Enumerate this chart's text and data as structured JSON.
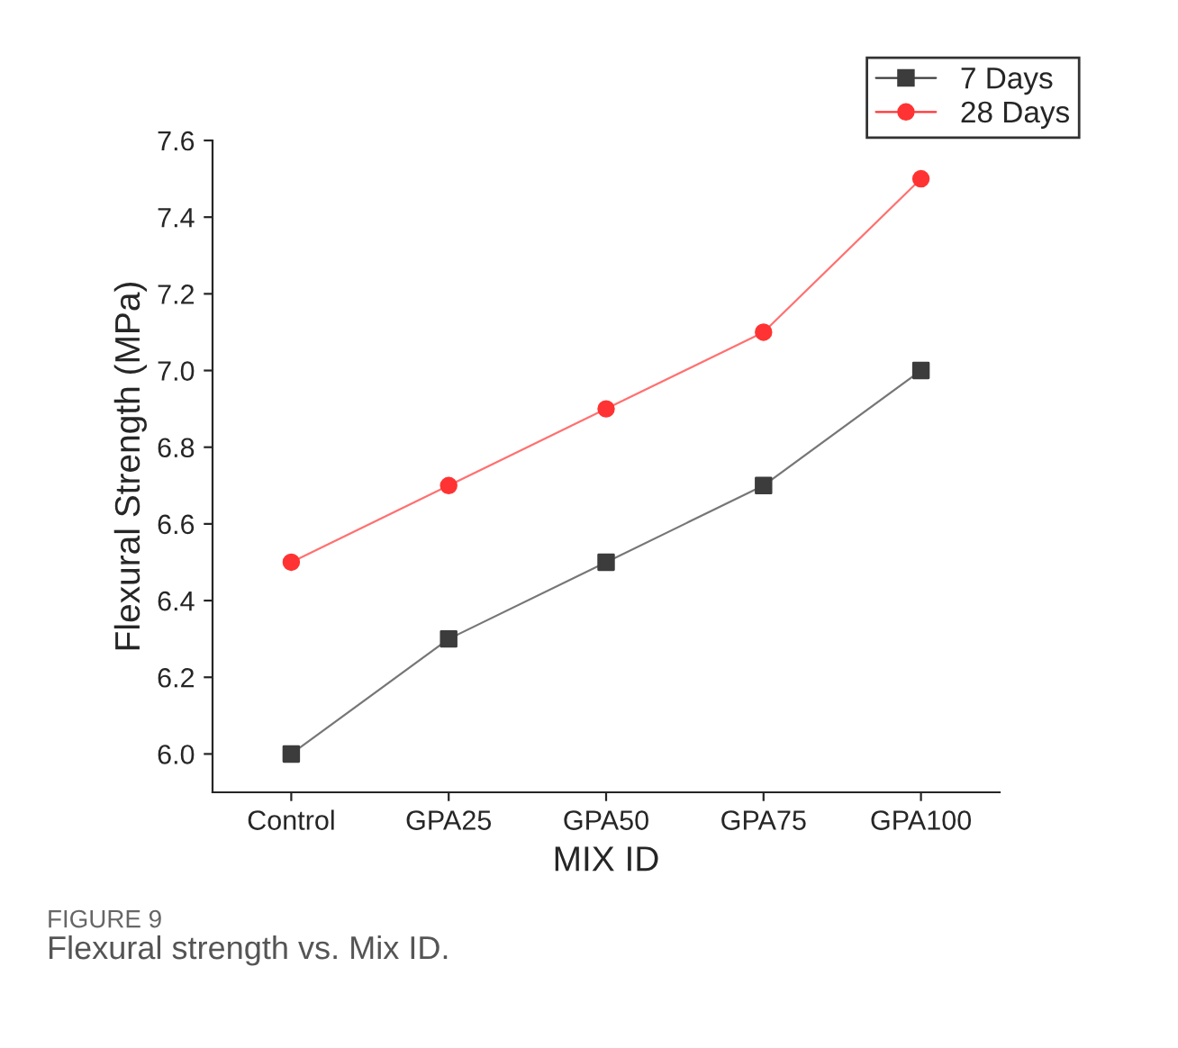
{
  "chart_data": {
    "type": "line",
    "xlabel": "MIX ID",
    "ylabel": "Flexural Strength (MPa)",
    "categories": [
      "Control",
      "GPA25",
      "GPA50",
      "GPA75",
      "GPA100"
    ],
    "series": [
      {
        "name": "7 Days",
        "color": "#3c3c3c",
        "marker": "square",
        "values": [
          6.0,
          6.3,
          6.5,
          6.7,
          7.0
        ]
      },
      {
        "name": "28 Days",
        "color": "#ff3333",
        "marker": "circle",
        "values": [
          6.5,
          6.7,
          6.9,
          7.1,
          7.5
        ]
      }
    ],
    "ylim": [
      5.9,
      7.6
    ],
    "yticks": [
      {
        "value": 6,
        "label": "6.0"
      },
      6.2,
      6.4,
      6.6,
      6.8,
      {
        "value": 7,
        "label": "7.0"
      },
      7.2,
      7.4,
      7.6
    ],
    "grid": false,
    "legend": "top right",
    "line_style": "solid",
    "annotations": [
      "FIGURE 9",
      "Flexural strength vs. Mix ID."
    ]
  }
}
